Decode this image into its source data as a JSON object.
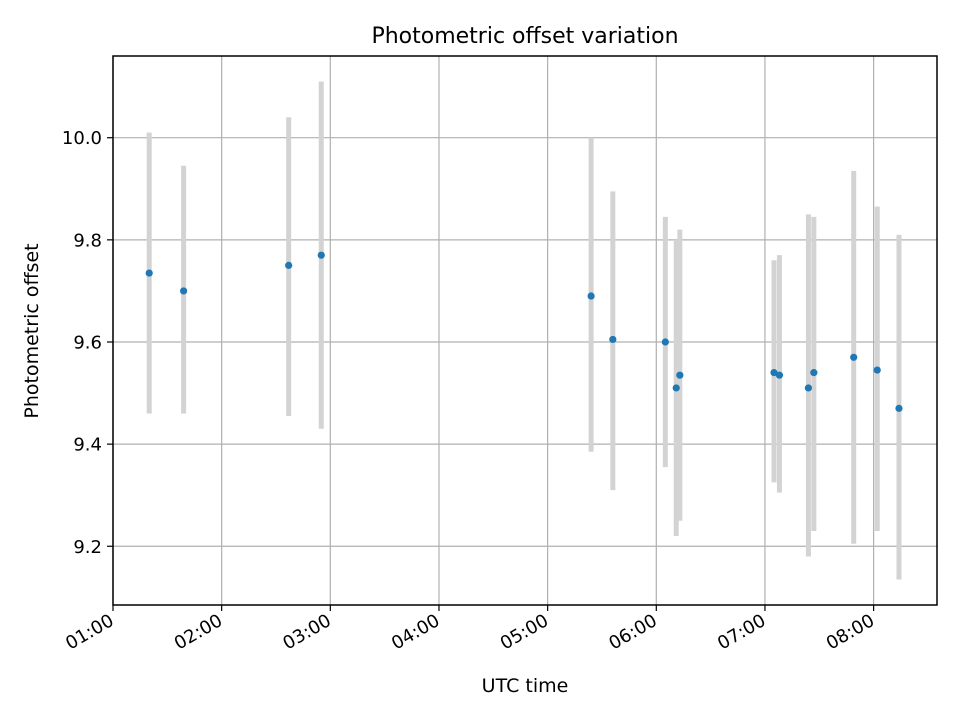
{
  "chart_data": {
    "type": "scatter",
    "title": "Photometric offset variation",
    "xlabel": "UTC time",
    "ylabel": "Photometric offset",
    "grid": true,
    "xlim": [
      "01:00",
      "08:35"
    ],
    "ylim": [
      9.085,
      10.16
    ],
    "xticks": [
      "01:00",
      "02:00",
      "03:00",
      "04:00",
      "05:00",
      "06:00",
      "07:00",
      "08:00"
    ],
    "yticks": [
      "9.2",
      "9.4",
      "9.6",
      "9.8",
      "10.0"
    ],
    "series": [
      {
        "points": [
          {
            "time": "01:20",
            "y": 9.735,
            "y_low": 9.46,
            "y_high": 10.01
          },
          {
            "time": "01:39",
            "y": 9.7,
            "y_low": 9.46,
            "y_high": 9.945
          },
          {
            "time": "02:37",
            "y": 9.75,
            "y_low": 9.455,
            "y_high": 10.04
          },
          {
            "time": "02:55",
            "y": 9.77,
            "y_low": 9.43,
            "y_high": 10.11
          },
          {
            "time": "05:24",
            "y": 9.69,
            "y_low": 9.385,
            "y_high": 10.0
          },
          {
            "time": "05:36",
            "y": 9.605,
            "y_low": 9.31,
            "y_high": 9.895
          },
          {
            "time": "06:05",
            "y": 9.6,
            "y_low": 9.355,
            "y_high": 9.845
          },
          {
            "time": "06:11",
            "y": 9.51,
            "y_low": 9.22,
            "y_high": 9.8
          },
          {
            "time": "06:13",
            "y": 9.535,
            "y_low": 9.25,
            "y_high": 9.82
          },
          {
            "time": "07:05",
            "y": 9.54,
            "y_low": 9.325,
            "y_high": 9.76
          },
          {
            "time": "07:08",
            "y": 9.535,
            "y_low": 9.305,
            "y_high": 9.77
          },
          {
            "time": "07:24",
            "y": 9.51,
            "y_low": 9.18,
            "y_high": 9.85
          },
          {
            "time": "07:27",
            "y": 9.54,
            "y_low": 9.23,
            "y_high": 9.845
          },
          {
            "time": "07:49",
            "y": 9.57,
            "y_low": 9.205,
            "y_high": 9.935
          },
          {
            "time": "08:02",
            "y": 9.545,
            "y_low": 9.23,
            "y_high": 9.865
          },
          {
            "time": "08:14",
            "y": 9.47,
            "y_low": 9.135,
            "y_high": 9.81
          }
        ]
      }
    ],
    "colors": {
      "point": "#1f77b4",
      "errorbar": "#d3d3d3",
      "grid": "#b0b0b0"
    }
  }
}
